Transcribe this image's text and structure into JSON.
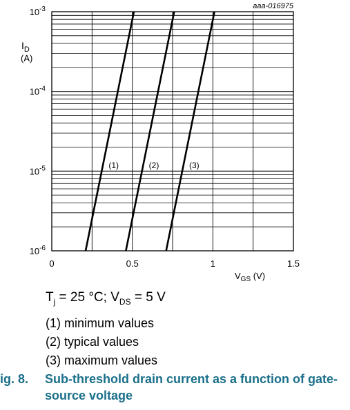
{
  "chart_data": {
    "type": "line",
    "ref_code": "aaa-016975",
    "y_scale": "log",
    "ylim": [
      1e-06,
      0.001
    ],
    "ylabel_main": "I",
    "ylabel_sub": "D",
    "ylabel_unit": "(A)",
    "y_ticks": [
      {
        "value": 1e-06,
        "base": "10",
        "exp": "-6"
      },
      {
        "value": 1e-05,
        "base": "10",
        "exp": "-5"
      },
      {
        "value": 0.0001,
        "base": "10",
        "exp": "-4"
      },
      {
        "value": 0.001,
        "base": "10",
        "exp": "-3"
      }
    ],
    "xlim": [
      0,
      1.5
    ],
    "x_ticks": [
      {
        "value": 0,
        "label": "0"
      },
      {
        "value": 0.5,
        "label": "0.5"
      },
      {
        "value": 1,
        "label": "1"
      },
      {
        "value": 1.5,
        "label": "1.5"
      }
    ],
    "x_minor_step": 0.25,
    "xlabel_main": "V",
    "xlabel_sub": "GS",
    "xlabel_unit": "(V)",
    "grid": true,
    "series": [
      {
        "label": "(1)",
        "x": [
          0.21,
          0.51
        ],
        "y": [
          1e-06,
          0.001
        ],
        "label_at": [
          0.34,
          1.2e-05
        ]
      },
      {
        "label": "(2)",
        "x": [
          0.46,
          0.76
        ],
        "y": [
          1e-06,
          0.001
        ],
        "label_at": [
          0.59,
          1.2e-05
        ]
      },
      {
        "label": "(3)",
        "x": [
          0.71,
          1.01
        ],
        "y": [
          1e-06,
          0.001
        ],
        "label_at": [
          0.84,
          1.2e-05
        ]
      }
    ]
  },
  "conditions": {
    "tj_main": "T",
    "tj_sub": "j",
    "tj_value": " = 25 °C; ",
    "vds_main": "V",
    "vds_sub": "DS",
    "vds_value": " = 5 V"
  },
  "legend": [
    "(1) minimum values",
    "(2) typical values",
    "(3) maximum values"
  ],
  "caption": {
    "number": "ig. 8.",
    "text": "Sub-threshold drain current as a function of gate-source voltage"
  }
}
